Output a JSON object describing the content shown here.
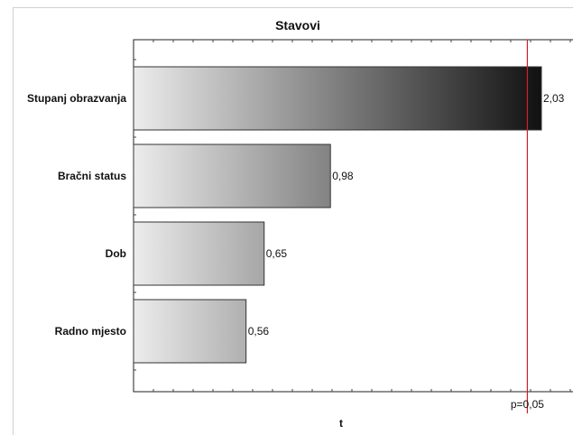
{
  "chart_data": {
    "type": "bar",
    "orientation": "horizontal",
    "title": "Stavovi",
    "xlabel": "t",
    "ylabel": "",
    "categories": [
      "Stupanj obrazvanja",
      "Bračni status",
      "Dob",
      "Radno mjesto"
    ],
    "values": [
      2.03,
      0.98,
      0.65,
      0.56
    ],
    "value_labels": [
      "2,03",
      "0,98",
      "0,65",
      "0,56"
    ],
    "xlim": [
      -0.0,
      2.15
    ],
    "reference_line": {
      "value": 1.96,
      "label": "p=0,05",
      "color": "#d0202a"
    },
    "grid": false,
    "legend": "none",
    "bar_fill": {
      "from": "#ececec",
      "to": "#111111"
    }
  }
}
